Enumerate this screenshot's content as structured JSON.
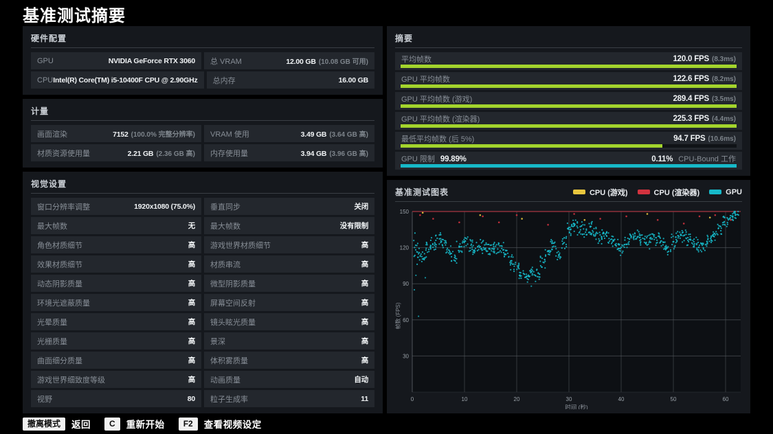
{
  "page": {
    "title": "基准测试摘要"
  },
  "colors": {
    "green": "#a3d42d",
    "cyan": "#17b9c9",
    "yellow": "#e8c63e",
    "red": "#d2333f",
    "red_line": "#a93541"
  },
  "hardware": {
    "header": "硬件配置",
    "rows": [
      [
        {
          "label": "GPU",
          "value": "NVIDIA GeForce RTX 3060",
          "sub": ""
        },
        {
          "label": "总 VRAM",
          "value": "12.00 GB",
          "sub": "(10.08 GB 可用)"
        }
      ],
      [
        {
          "label": "CPU",
          "value": "Intel(R) Core(TM) i5-10400F CPU @ 2.90GHz",
          "sub": ""
        },
        {
          "label": "总内存",
          "value": "16.00 GB",
          "sub": ""
        }
      ]
    ]
  },
  "metrics": {
    "header": "计量",
    "rows": [
      [
        {
          "label": "画面渲染",
          "value": "7152",
          "sub": "(100.0% 完整分辨率)"
        },
        {
          "label": "VRAM 使用",
          "value": "3.49 GB",
          "sub": "(3.64 GB 高)"
        }
      ],
      [
        {
          "label": "材质资源使用量",
          "value": "2.21 GB",
          "sub": "(2.36 GB 高)"
        },
        {
          "label": "内存使用量",
          "value": "3.94 GB",
          "sub": "(3.96 GB 高)"
        }
      ]
    ]
  },
  "visual_settings": {
    "header": "视觉设置",
    "rows": [
      [
        {
          "label": "窗口分辨率调整",
          "value": "1920x1080 (75.0%)",
          "sub": ""
        },
        {
          "label": "垂直同步",
          "value": "关闭",
          "sub": ""
        }
      ],
      [
        {
          "label": "最大帧数",
          "value": "无",
          "sub": ""
        },
        {
          "label": "最大帧数",
          "value": "没有限制",
          "sub": ""
        }
      ],
      [
        {
          "label": "角色材质细节",
          "value": "高",
          "sub": ""
        },
        {
          "label": "游戏世界材质细节",
          "value": "高",
          "sub": ""
        }
      ],
      [
        {
          "label": "效果材质细节",
          "value": "高",
          "sub": ""
        },
        {
          "label": "材质串流",
          "value": "高",
          "sub": ""
        }
      ],
      [
        {
          "label": "动态阴影质量",
          "value": "高",
          "sub": ""
        },
        {
          "label": "微型阴影质量",
          "value": "高",
          "sub": ""
        }
      ],
      [
        {
          "label": "环境光遮蔽质量",
          "value": "高",
          "sub": ""
        },
        {
          "label": "屏幕空间反射",
          "value": "高",
          "sub": ""
        }
      ],
      [
        {
          "label": "光晕质量",
          "value": "高",
          "sub": ""
        },
        {
          "label": "镜头眩光质量",
          "value": "高",
          "sub": ""
        }
      ],
      [
        {
          "label": "光栅质量",
          "value": "高",
          "sub": ""
        },
        {
          "label": "景深",
          "value": "高",
          "sub": ""
        }
      ],
      [
        {
          "label": "曲面细分质量",
          "value": "高",
          "sub": ""
        },
        {
          "label": "体积雾质量",
          "value": "高",
          "sub": ""
        }
      ],
      [
        {
          "label": "游戏世界细致度等级",
          "value": "高",
          "sub": ""
        },
        {
          "label": "动画质量",
          "value": "自动",
          "sub": ""
        }
      ],
      [
        {
          "label": "视野",
          "value": "80",
          "sub": ""
        },
        {
          "label": "粒子生成率",
          "value": "11",
          "sub": ""
        }
      ]
    ]
  },
  "summary": {
    "header": "摘要",
    "rows": [
      {
        "label": "平均帧数",
        "value": "120.0 FPS",
        "sub": "(8.3ms)",
        "pct": 100,
        "color": "green"
      },
      {
        "label": "GPU 平均帧数",
        "value": "122.6 FPS",
        "sub": "(8.2ms)",
        "pct": 100,
        "color": "green"
      },
      {
        "label": "GPU 平均帧数 (游戏)",
        "value": "289.4 FPS",
        "sub": "(3.5ms)",
        "pct": 100,
        "color": "green"
      },
      {
        "label": "GPU 平均帧数 (渲染器)",
        "value": "225.3 FPS",
        "sub": "(4.4ms)",
        "pct": 100,
        "color": "green"
      },
      {
        "label": "最低平均帧数 (后 5%)",
        "value": "94.7 FPS",
        "sub": "(10.6ms)",
        "pct": 78,
        "color": "green"
      }
    ],
    "gpu_limit": {
      "label": "GPU 限制",
      "value": "99.89%",
      "right_value": "0.11%",
      "right_label": "CPU-Bound 工作",
      "pct": 100,
      "color": "cyan"
    }
  },
  "chart_data": {
    "type": "scatter",
    "title": "基准测试图表",
    "xlabel": "时间 (秒)",
    "ylabel": "帧数 (FPS)",
    "xlim": [
      0,
      63
    ],
    "ylim": [
      0,
      150
    ],
    "xticks": [
      0,
      10,
      20,
      30,
      40,
      50,
      60
    ],
    "yticks": [
      30,
      60,
      90,
      120,
      150
    ],
    "grid": true,
    "legend_position": "top-right",
    "legend": [
      {
        "name": "CPU (游戏)",
        "color": "#e8c63e"
      },
      {
        "name": "CPU (渲染器)",
        "color": "#d2333f"
      },
      {
        "name": "GPU",
        "color": "#17b9c9"
      }
    ],
    "series": [
      {
        "name": "GPU",
        "render": "scatter-band",
        "color": "#17b9c9",
        "x_step_seconds": 1,
        "fps_by_second": [
          122,
          116,
          112,
          119,
          123,
          128,
          124,
          117,
          112,
          120,
          127,
          123,
          118,
          121,
          120,
          119,
          121,
          120,
          115,
          108,
          102,
          98,
          96,
          101,
          97,
          108,
          117,
          124,
          114,
          126,
          134,
          139,
          137,
          133,
          136,
          133,
          129,
          131,
          127,
          123,
          119,
          124,
          129,
          131,
          127,
          125,
          129,
          127,
          123,
          119,
          125,
          129,
          131,
          127,
          123,
          120,
          123,
          127,
          131,
          137,
          142,
          145,
          147
        ],
        "spread_default": 7,
        "spread_overrides": {
          "0": 20,
          "1": 12,
          "20": 6,
          "21": 6,
          "22": 6,
          "60": 5,
          "61": 5,
          "62": 5
        },
        "stray_points": [
          [
            0.4,
            85
          ],
          [
            0.7,
            97
          ],
          [
            1.2,
            63
          ],
          [
            2.5,
            95
          ],
          [
            22.8,
            88
          ]
        ]
      },
      {
        "name": "CPU (渲染器)",
        "render": "clipped-line",
        "color": "#d2333f",
        "clipped_at": 150,
        "note": "avg 225.3 FPS, above axis max — drawn as line at 150",
        "outlier_points": [
          [
            1.5,
            147
          ],
          [
            4,
            144
          ],
          [
            9,
            141
          ],
          [
            13.5,
            146
          ],
          [
            16.6,
            141
          ],
          [
            20,
            147
          ],
          [
            26,
            139
          ],
          [
            31,
            148
          ],
          [
            36,
            144
          ],
          [
            41,
            146
          ],
          [
            47,
            143
          ],
          [
            52,
            140
          ],
          [
            55,
            146
          ],
          [
            58,
            147
          ],
          [
            61,
            143
          ]
        ]
      },
      {
        "name": "CPU (游戏)",
        "render": "clipped",
        "color": "#e8c63e",
        "clipped_at": 150,
        "note": "avg 289.4 FPS, above axis max",
        "outlier_points": [
          [
            2,
            149
          ],
          [
            13,
            147
          ],
          [
            21,
            144
          ],
          [
            33,
            143
          ],
          [
            45,
            148
          ],
          [
            57,
            145
          ]
        ]
      }
    ]
  },
  "bottom_bar": {
    "items": [
      {
        "key": "撤离模式",
        "label": "返回"
      },
      {
        "key": "C",
        "label": "重新开始"
      },
      {
        "key": "F2",
        "label": "查看视频设定"
      }
    ]
  }
}
